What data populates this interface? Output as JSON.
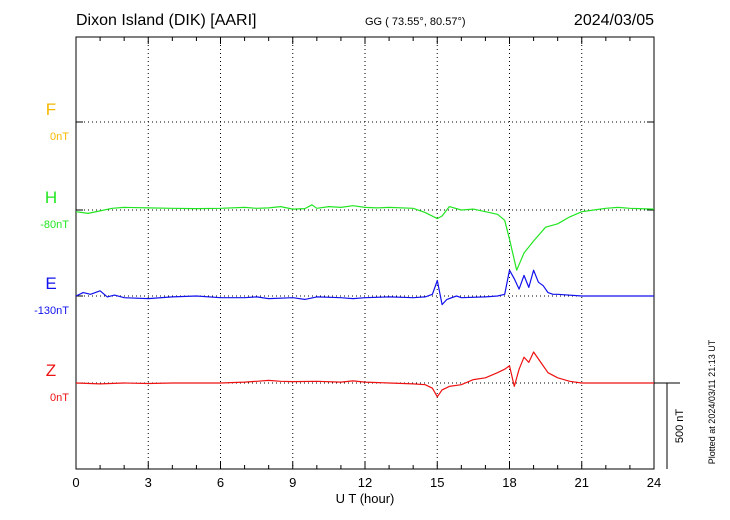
{
  "header": {
    "station": "Dixon Island (DIK)  [AARI]",
    "coords": "GG ( 73.55°,  80.57°)",
    "date": "2024/03/05"
  },
  "footer": {
    "plotted": "Plotted at 2024/03/11 21:13 UT"
  },
  "chart_data": {
    "type": "line",
    "title": "Dixon Island (DIK)  [AARI]",
    "xlabel": "U T (hour)",
    "xlim": [
      0,
      24
    ],
    "xticks": [
      0,
      3,
      6,
      9,
      12,
      15,
      18,
      21,
      24
    ],
    "scale_bar_label": "500 nT",
    "scale_bar_nT": 500,
    "grid": true,
    "series": [
      {
        "name": "F",
        "baseline": "0nT",
        "color": "#f5b800",
        "x": [],
        "y": []
      },
      {
        "name": "H",
        "baseline": "-80nT",
        "color": "#22e622",
        "x": [
          0,
          0.5,
          1,
          1.5,
          2,
          3,
          4,
          5,
          6,
          7,
          7.5,
          8,
          8.5,
          9,
          9.5,
          9.8,
          10,
          10.5,
          11,
          11.5,
          12,
          12.5,
          13,
          14,
          14.5,
          15,
          15.2,
          15.5,
          16,
          16.5,
          17,
          17.5,
          17.8,
          18,
          18.3,
          18.6,
          19,
          19.5,
          20,
          20.5,
          21,
          21.5,
          22,
          22.5,
          23,
          24
        ],
        "y": [
          -10,
          -20,
          -5,
          10,
          15,
          12,
          10,
          8,
          10,
          15,
          10,
          12,
          20,
          5,
          8,
          30,
          10,
          20,
          15,
          25,
          15,
          12,
          15,
          10,
          -15,
          -50,
          -35,
          20,
          0,
          5,
          -10,
          -25,
          -60,
          -170,
          -350,
          -250,
          -180,
          -100,
          -80,
          -40,
          -10,
          0,
          10,
          15,
          10,
          5
        ]
      },
      {
        "name": "E",
        "baseline": "-130nT",
        "color": "#1111ee",
        "x": [
          0,
          0.3,
          0.6,
          1,
          1.3,
          1.6,
          2,
          3,
          4,
          5,
          6,
          7,
          7.5,
          8,
          9,
          9.5,
          10,
          11,
          11.5,
          12,
          13,
          14,
          14.5,
          14.8,
          15,
          15.2,
          15.4,
          15.8,
          16,
          17,
          17.5,
          17.8,
          18,
          18.2,
          18.4,
          18.6,
          18.8,
          19,
          19.2,
          19.4,
          19.6,
          19.8,
          20,
          21,
          22,
          23,
          24
        ],
        "y": [
          0,
          20,
          10,
          30,
          -5,
          5,
          -10,
          -15,
          -5,
          0,
          -10,
          -10,
          -5,
          -15,
          -10,
          -20,
          -5,
          -10,
          -15,
          -10,
          -5,
          -10,
          -5,
          10,
          90,
          -50,
          -20,
          0,
          -10,
          -5,
          0,
          10,
          150,
          100,
          40,
          120,
          50,
          150,
          80,
          60,
          20,
          10,
          10,
          0,
          0,
          0,
          0
        ]
      },
      {
        "name": "Z",
        "baseline": "0nT",
        "color": "#ee1111",
        "x": [
          0,
          1,
          2,
          3,
          4,
          5,
          6,
          7,
          7.5,
          8,
          8.5,
          9,
          10,
          11,
          11.5,
          12,
          13,
          14,
          14.5,
          14.8,
          15,
          15.2,
          15.5,
          16,
          16.5,
          17,
          17.5,
          17.8,
          18,
          18.2,
          18.4,
          18.6,
          18.8,
          19,
          19.3,
          19.6,
          20,
          20.5,
          21,
          22,
          23,
          24
        ],
        "y": [
          0,
          -5,
          0,
          -3,
          0,
          0,
          0,
          5,
          10,
          15,
          10,
          8,
          10,
          5,
          12,
          5,
          0,
          -5,
          -10,
          -30,
          -80,
          -40,
          -20,
          -10,
          20,
          30,
          60,
          80,
          100,
          -20,
          80,
          150,
          120,
          180,
          120,
          60,
          30,
          10,
          0,
          0,
          0,
          0
        ]
      }
    ]
  }
}
